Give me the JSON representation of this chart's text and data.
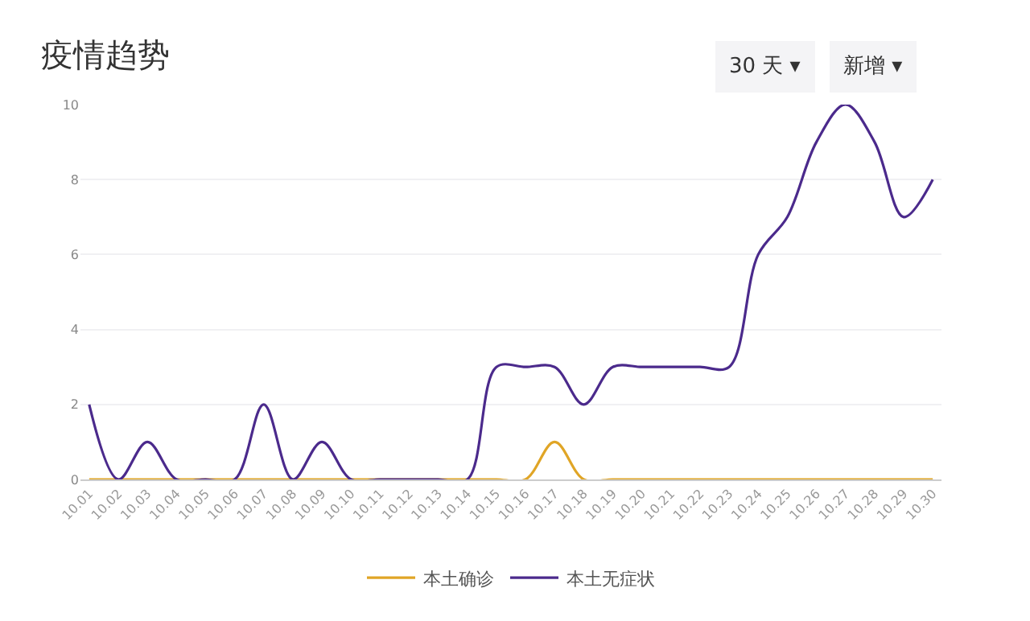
{
  "chart_data": {
    "type": "line",
    "title": "疫情趋势",
    "annotations": [
      "30 天 ▾",
      "新增 ▾"
    ],
    "categories": [
      "10.01",
      "10.02",
      "10.03",
      "10.04",
      "10.05",
      "10.06",
      "10.07",
      "10.08",
      "10.09",
      "10.10",
      "10.11",
      "10.12",
      "10.13",
      "10.14",
      "10.15",
      "10.16",
      "10.17",
      "10.18",
      "10.19",
      "10.20",
      "10.21",
      "10.22",
      "10.23",
      "10.24",
      "10.25",
      "10.26",
      "10.27",
      "10.28",
      "10.29",
      "10.30"
    ],
    "series": [
      {
        "name": "本土确诊",
        "color": "#e0a526",
        "values": [
          0,
          0,
          0,
          0,
          0,
          0,
          0,
          0,
          0,
          0,
          0,
          0,
          0,
          0,
          0,
          0,
          1,
          0,
          0,
          0,
          0,
          0,
          0,
          0,
          0,
          0,
          0,
          0,
          0,
          0
        ]
      },
      {
        "name": "本土无症状",
        "color": "#4b2a8c",
        "values": [
          2,
          0,
          1,
          0,
          0,
          0,
          2,
          0,
          1,
          0,
          0,
          0,
          0,
          0,
          3,
          3,
          3,
          2,
          3,
          3,
          3,
          3,
          3,
          6,
          7,
          9,
          10,
          9,
          7,
          8
        ]
      }
    ],
    "ylim": [
      0,
      10
    ],
    "yticks": [
      0,
      2,
      4,
      6,
      8,
      10
    ],
    "grid": "y",
    "legend": "bottom",
    "marker": "none",
    "line_style": "solid"
  }
}
